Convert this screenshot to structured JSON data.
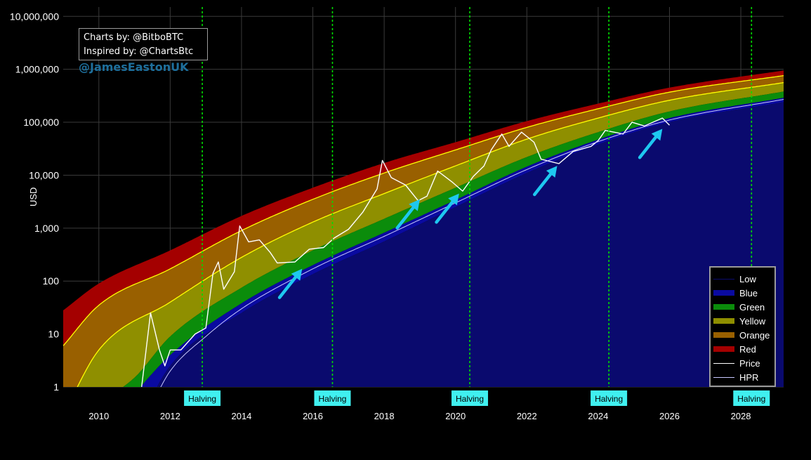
{
  "chart_data": {
    "type": "area",
    "title": "",
    "xlabel": "",
    "ylabel": "USD",
    "y_scale": "log",
    "xlim": [
      2009,
      2029.2
    ],
    "ylim": [
      1,
      15000000
    ],
    "x_ticks": [
      2010,
      2012,
      2014,
      2016,
      2018,
      2020,
      2022,
      2024,
      2026,
      2028
    ],
    "y_ticks": [
      {
        "value": 1,
        "label": "1"
      },
      {
        "value": 10,
        "label": "10"
      },
      {
        "value": 100,
        "label": "100"
      },
      {
        "value": 1000,
        "label": "1,000"
      },
      {
        "value": 10000,
        "label": "10,000"
      },
      {
        "value": 100000,
        "label": "100,000"
      },
      {
        "value": 1000000,
        "label": "1,000,000"
      },
      {
        "value": 10000000,
        "label": "10,000,000"
      }
    ],
    "grid": true,
    "legend_position": "bottom-right",
    "legend": [
      "Low",
      "Blue",
      "Green",
      "Yellow",
      "Orange",
      "Red",
      "Price",
      "HPR"
    ],
    "bands": [
      {
        "name": "Low",
        "color": "#0a0a6e",
        "values": [
          [
            2011.0,
            0.15
          ],
          [
            2012.0,
            2.5
          ],
          [
            2014.0,
            25
          ],
          [
            2016.0,
            135
          ],
          [
            2018.0,
            560
          ],
          [
            2020.0,
            2500
          ],
          [
            2022.0,
            11000
          ],
          [
            2024.0,
            38000
          ],
          [
            2026.0,
            100000
          ],
          [
            2029.2,
            240000
          ]
        ]
      },
      {
        "name": "Blue",
        "color": "#0a0aa0",
        "values": [
          [
            2010.5,
            0.3
          ],
          [
            2012.0,
            4
          ],
          [
            2014.0,
            38
          ],
          [
            2016.0,
            200
          ],
          [
            2018.0,
            820
          ],
          [
            2020.0,
            3400
          ],
          [
            2022.0,
            14500
          ],
          [
            2024.0,
            47000
          ],
          [
            2026.0,
            120000
          ],
          [
            2029.2,
            290000
          ]
        ]
      },
      {
        "name": "Green",
        "color": "#0b8c0b",
        "values": [
          [
            2010.0,
            0.5
          ],
          [
            2011.0,
            1.5
          ],
          [
            2012.0,
            9
          ],
          [
            2014.0,
            75
          ],
          [
            2016.0,
            380
          ],
          [
            2018.0,
            1500
          ],
          [
            2020.0,
            5800
          ],
          [
            2022.0,
            22000
          ],
          [
            2024.0,
            65000
          ],
          [
            2026.0,
            160000
          ],
          [
            2029.2,
            380000
          ]
        ]
      },
      {
        "name": "Yellow",
        "color": "#8f8f00",
        "values": [
          [
            2009.0,
            0.3
          ],
          [
            2010.0,
            5
          ],
          [
            2012.0,
            40
          ],
          [
            2014.0,
            280
          ],
          [
            2016.0,
            1300
          ],
          [
            2018.0,
            4500
          ],
          [
            2020.0,
            15000
          ],
          [
            2022.0,
            48000
          ],
          [
            2024.0,
            120000
          ],
          [
            2026.0,
            260000
          ],
          [
            2029.2,
            560000
          ]
        ]
      },
      {
        "name": "Orange",
        "color": "#996000",
        "values": [
          [
            2009.0,
            6
          ],
          [
            2010.0,
            35
          ],
          [
            2012.0,
            170
          ],
          [
            2014.0,
            900
          ],
          [
            2016.0,
            3500
          ],
          [
            2018.0,
            11000
          ],
          [
            2020.0,
            30000
          ],
          [
            2022.0,
            80000
          ],
          [
            2024.0,
            180000
          ],
          [
            2026.0,
            370000
          ],
          [
            2029.2,
            760000
          ]
        ]
      },
      {
        "name": "Red",
        "color": "#a40000",
        "values": [
          [
            2009.0,
            28
          ],
          [
            2010.0,
            90
          ],
          [
            2012.0,
            380
          ],
          [
            2014.0,
            1700
          ],
          [
            2016.0,
            5800
          ],
          [
            2018.0,
            17000
          ],
          [
            2020.0,
            42000
          ],
          [
            2022.0,
            105000
          ],
          [
            2024.0,
            225000
          ],
          [
            2026.0,
            450000
          ],
          [
            2029.2,
            950000
          ]
        ]
      }
    ],
    "band_edge_color": "#ffff00",
    "series": [
      {
        "name": "Price",
        "color": "#ffffff",
        "values": [
          [
            2011.2,
            1
          ],
          [
            2011.45,
            25
          ],
          [
            2011.7,
            5
          ],
          [
            2011.85,
            2.5
          ],
          [
            2012.0,
            5
          ],
          [
            2012.3,
            5
          ],
          [
            2012.7,
            10
          ],
          [
            2013.0,
            13
          ],
          [
            2013.2,
            140
          ],
          [
            2013.35,
            230
          ],
          [
            2013.5,
            70
          ],
          [
            2013.8,
            150
          ],
          [
            2013.95,
            1100
          ],
          [
            2014.2,
            550
          ],
          [
            2014.5,
            600
          ],
          [
            2014.8,
            350
          ],
          [
            2015.0,
            220
          ],
          [
            2015.5,
            230
          ],
          [
            2015.9,
            400
          ],
          [
            2016.3,
            430
          ],
          [
            2016.6,
            650
          ],
          [
            2017.0,
            950
          ],
          [
            2017.4,
            2000
          ],
          [
            2017.8,
            5500
          ],
          [
            2017.95,
            19000
          ],
          [
            2018.2,
            9000
          ],
          [
            2018.6,
            6500
          ],
          [
            2018.95,
            3300
          ],
          [
            2019.2,
            4000
          ],
          [
            2019.5,
            12000
          ],
          [
            2019.9,
            7500
          ],
          [
            2020.2,
            5000
          ],
          [
            2020.5,
            9500
          ],
          [
            2020.8,
            15000
          ],
          [
            2021.0,
            30000
          ],
          [
            2021.3,
            60000
          ],
          [
            2021.5,
            35000
          ],
          [
            2021.85,
            65000
          ],
          [
            2022.2,
            42000
          ],
          [
            2022.4,
            20000
          ],
          [
            2022.9,
            16500
          ],
          [
            2023.3,
            28000
          ],
          [
            2023.8,
            35000
          ],
          [
            2024.0,
            45000
          ],
          [
            2024.2,
            70000
          ],
          [
            2024.7,
            60000
          ],
          [
            2024.95,
            100000
          ],
          [
            2025.3,
            85000
          ],
          [
            2025.8,
            120000
          ],
          [
            2026.0,
            88000
          ]
        ]
      },
      {
        "name": "HPR",
        "color": "#c8c8ff",
        "values": [
          [
            2011.5,
            0.5
          ],
          [
            2012.0,
            2
          ],
          [
            2013.0,
            9
          ],
          [
            2014.0,
            30
          ],
          [
            2016.0,
            170
          ],
          [
            2018.0,
            700
          ],
          [
            2020.0,
            3000
          ],
          [
            2022.0,
            12800
          ],
          [
            2024.0,
            43000
          ],
          [
            2026.0,
            110000
          ],
          [
            2029.2,
            270000
          ]
        ]
      }
    ],
    "annotations": {
      "halvings": [
        {
          "x": 2012.9,
          "label": "Halving"
        },
        {
          "x": 2016.55,
          "label": "Halving"
        },
        {
          "x": 2020.4,
          "label": "Halving"
        },
        {
          "x": 2024.3,
          "label": "Halving"
        },
        {
          "x": 2028.3,
          "label": "Halving"
        }
      ],
      "arrows": [
        {
          "x": 2015.7,
          "y": 170,
          "direction": "up-right"
        },
        {
          "x": 2019.0,
          "y": 3500,
          "direction": "up-right"
        },
        {
          "x": 2020.1,
          "y": 4500,
          "direction": "up-right"
        },
        {
          "x": 2022.85,
          "y": 15000,
          "direction": "up-right"
        },
        {
          "x": 2025.8,
          "y": 75000,
          "direction": "up-right"
        }
      ],
      "arrow_color": "#1ec8f0",
      "halving_color": "#00dd00"
    }
  },
  "credits": {
    "line1": "Charts by: @BitboBTC",
    "line2": "Inspired by: @ChartsBtc",
    "handle": "@JamesEastonUK"
  },
  "legend_items": [
    {
      "label": "Low",
      "color": "#0a0a6e",
      "kind": "line"
    },
    {
      "label": "Blue",
      "color": "#0a0aa0",
      "kind": "band"
    },
    {
      "label": "Green",
      "color": "#0b8c0b",
      "kind": "band"
    },
    {
      "label": "Yellow",
      "color": "#8f8f00",
      "kind": "band"
    },
    {
      "label": "Orange",
      "color": "#996000",
      "kind": "band"
    },
    {
      "label": "Red",
      "color": "#a40000",
      "kind": "band"
    },
    {
      "label": "Price",
      "color": "#ffffff",
      "kind": "line"
    },
    {
      "label": "HPR",
      "color": "#c8c8ff",
      "kind": "line"
    }
  ]
}
